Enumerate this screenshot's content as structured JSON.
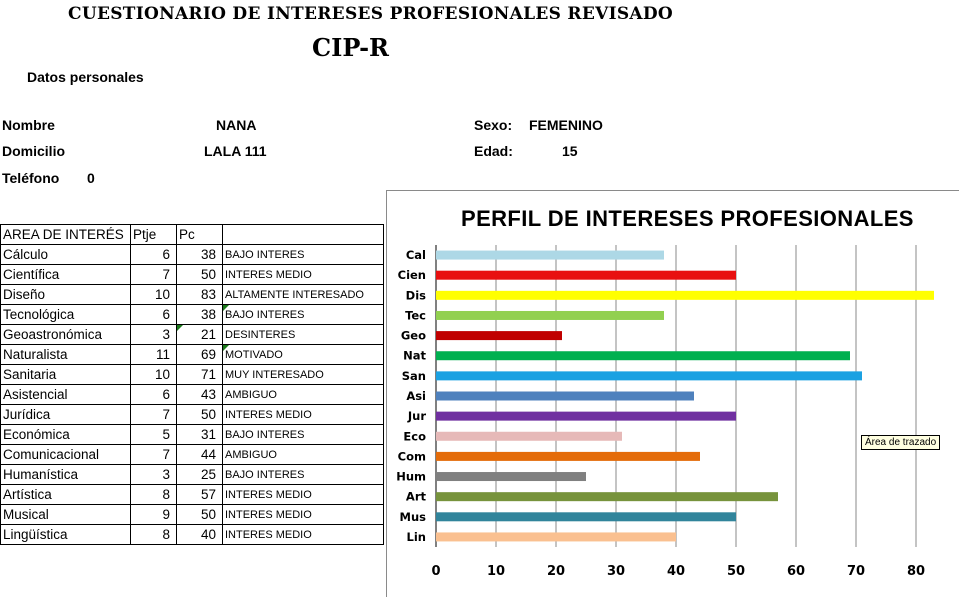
{
  "header": {
    "title": "CUESTIONARIO DE INTERESES PROFESIONALES REVISADO",
    "subtitle": "CIP-R"
  },
  "personal": {
    "section_label": "Datos personales",
    "name_label": "Nombre",
    "name_value": "NANA",
    "address_label": "Domicilio",
    "address_value": "LALA 111",
    "phone_label": "Teléfono",
    "phone_value": "0",
    "sex_label": "Sexo:",
    "sex_value": "FEMENINO",
    "age_label": "Edad:",
    "age_value": "15"
  },
  "table": {
    "headers": [
      "AREA DE INTERÉS",
      "Ptje",
      "Pc",
      ""
    ],
    "rows": [
      {
        "area": "Cálculo",
        "ptje": "6",
        "pc": "38",
        "interp": "BAJO INTERES"
      },
      {
        "area": "Científica",
        "ptje": "7",
        "pc": "50",
        "interp": "INTERES MEDIO"
      },
      {
        "area": "Diseño",
        "ptje": "10",
        "pc": "83",
        "interp": "ALTAMENTE INTERESADO"
      },
      {
        "area": "Tecnológica",
        "ptje": "6",
        "pc": "38",
        "interp": "BAJO INTERES"
      },
      {
        "area": "Geoastronómica",
        "ptje": "3",
        "pc": "21",
        "interp": "DESINTERES"
      },
      {
        "area": "Naturalista",
        "ptje": "11",
        "pc": "69",
        "interp": "MOTIVADO"
      },
      {
        "area": "Sanitaria",
        "ptje": "10",
        "pc": "71",
        "interp": "MUY  INTERESADO"
      },
      {
        "area": "Asistencial",
        "ptje": "6",
        "pc": "43",
        "interp": "AMBIGUO"
      },
      {
        "area": "Jurídica",
        "ptje": "7",
        "pc": "50",
        "interp": "INTERES MEDIO"
      },
      {
        "area": "Económica",
        "ptje": "5",
        "pc": "31",
        "interp": "BAJO INTERES"
      },
      {
        "area": "Comunicacional",
        "ptje": "7",
        "pc": "44",
        "interp": "AMBIGUO"
      },
      {
        "area": "Humanística",
        "ptje": "3",
        "pc": "25",
        "interp": "BAJO INTERES"
      },
      {
        "area": "Artística",
        "ptje": "8",
        "pc": "57",
        "interp": "INTERES MEDIO"
      },
      {
        "area": "Musical",
        "ptje": "9",
        "pc": "50",
        "interp": "INTERES MEDIO"
      },
      {
        "area": "Lingüística",
        "ptje": "8",
        "pc": "40",
        "interp": "INTERES MEDIO"
      }
    ]
  },
  "tooltip": "Área de trazado",
  "chart_data": {
    "type": "bar",
    "orientation": "horizontal",
    "title": "PERFIL DE INTERESES PROFESIONALES",
    "categories": [
      "Cal",
      "Cien",
      "Dis",
      "Tec",
      "Geo",
      "Nat",
      "San",
      "Asi",
      "Jur",
      "Eco",
      "Com",
      "Hum",
      "Art",
      "Mus",
      "Lin"
    ],
    "values": [
      38,
      50,
      83,
      38,
      21,
      69,
      71,
      43,
      50,
      31,
      44,
      25,
      57,
      50,
      40
    ],
    "colors": [
      "#add8e6",
      "#e81010",
      "#ffff00",
      "#92d050",
      "#c00000",
      "#00b050",
      "#1ba1e2",
      "#4f81bd",
      "#7030a0",
      "#e6b9b8",
      "#e46c0a",
      "#808080",
      "#77933c",
      "#31849b",
      "#fac090"
    ],
    "xlim": [
      0,
      83
    ],
    "xticks": [
      0,
      10,
      20,
      30,
      40,
      50,
      60,
      70,
      80
    ],
    "grid": true,
    "xlabel": "",
    "ylabel": ""
  }
}
